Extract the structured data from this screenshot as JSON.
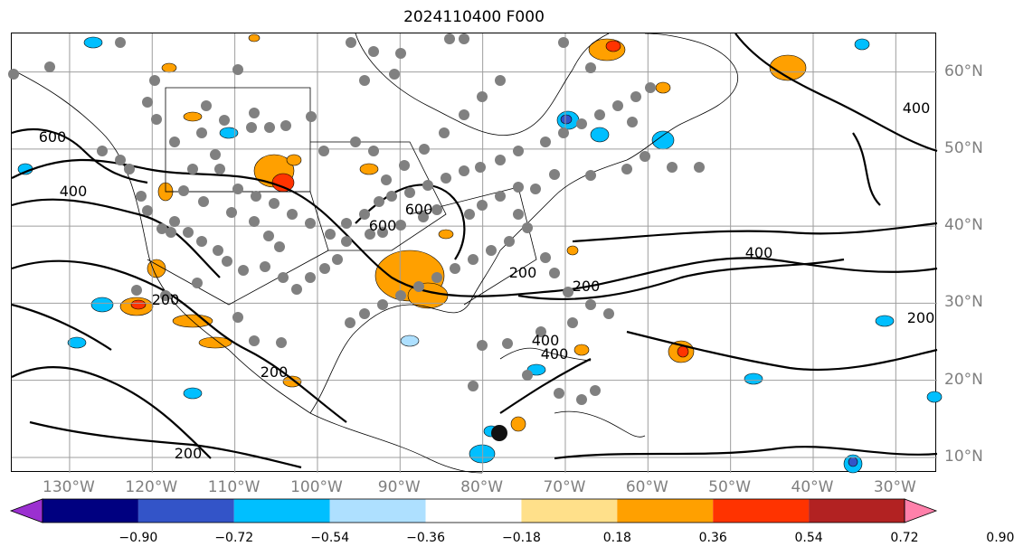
{
  "title": "2024110400 F000",
  "map": {
    "lon_range": [
      -137,
      -25
    ],
    "lat_range": [
      8,
      65
    ],
    "lon_labels": [
      "130°W",
      "120°W",
      "110°W",
      "100°W",
      "90°W",
      "80°W",
      "70°W",
      "60°W",
      "50°W",
      "40°W",
      "30°W"
    ],
    "lat_labels": [
      "60°N",
      "50°N",
      "40°N",
      "30°N",
      "20°N",
      "10°N"
    ],
    "contour_labels": [
      "200",
      "200",
      "200",
      "200",
      "400",
      "400",
      "400",
      "400",
      "600",
      "600",
      "600",
      "400",
      "200",
      "200"
    ],
    "colors": {
      "gridline": "#9e9e9e",
      "contour": "#000000",
      "coast": "#000000",
      "station": "#808080",
      "station_highlight": "#111111"
    }
  },
  "colorbar": {
    "tick_labels": [
      "−0.90",
      "−0.72",
      "−0.54",
      "−0.36",
      "−0.18",
      "0.18",
      "0.36",
      "0.54",
      "0.72",
      "0.90"
    ],
    "colors": [
      "#9b30d0",
      "#000080",
      "#3354c8",
      "#00bfff",
      "#aee0ff",
      "#ffffff",
      "#ffe08a",
      "#ffa000",
      "#ff3300",
      "#b22222",
      "#ff80aa"
    ]
  }
}
